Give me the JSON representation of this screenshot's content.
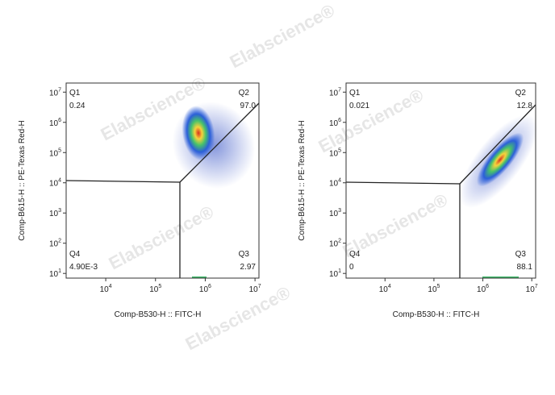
{
  "watermark": "Elabscience®",
  "chart_data": [
    {
      "type": "scatter",
      "x_label": "Comp-B530-H :: FITC-H",
      "y_label": "Comp-B615-H :: PE-Texas Red-H",
      "x_scale": "log",
      "y_scale": "log",
      "xlim": [
        1600,
        12000000
      ],
      "ylim": [
        7,
        20000000
      ],
      "xticks": [
        {
          "value": 10000,
          "label": "10",
          "exponent": "4"
        },
        {
          "value": 100000,
          "label": "10",
          "exponent": "5"
        },
        {
          "value": 1000000,
          "label": "10",
          "exponent": "6"
        },
        {
          "value": 10000000,
          "label": "10",
          "exponent": "7"
        }
      ],
      "yticks": [
        {
          "value": 10,
          "label": "10",
          "exponent": "1"
        },
        {
          "value": 100,
          "label": "10",
          "exponent": "2"
        },
        {
          "value": 1000,
          "label": "10",
          "exponent": "3"
        },
        {
          "value": 10000,
          "label": "10",
          "exponent": "4"
        },
        {
          "value": 100000,
          "label": "10",
          "exponent": "5"
        },
        {
          "value": 1000000,
          "label": "10",
          "exponent": "6"
        },
        {
          "value": 10000000,
          "label": "10",
          "exponent": "7"
        }
      ],
      "quadrants": [
        "Q1",
        "Q2",
        "Q3",
        "Q4"
      ],
      "values": [
        0.24,
        97.0,
        2.97,
        0.0049
      ],
      "value_labels": [
        "0.24",
        "97.0",
        "2.97",
        "4.90E-3"
      ]
    },
    {
      "type": "scatter",
      "x_label": "Comp-B530-H :: FITC-H",
      "y_label": "Comp-B615-H :: PE-Texas Red-H",
      "x_scale": "log",
      "y_scale": "log",
      "xlim": [
        1600,
        12000000
      ],
      "ylim": [
        7,
        20000000
      ],
      "xticks": [
        {
          "value": 10000,
          "label": "10",
          "exponent": "4"
        },
        {
          "value": 100000,
          "label": "10",
          "exponent": "5"
        },
        {
          "value": 1000000,
          "label": "10",
          "exponent": "6"
        },
        {
          "value": 10000000,
          "label": "10",
          "exponent": "7"
        }
      ],
      "yticks": [
        {
          "value": 10,
          "label": "10",
          "exponent": "1"
        },
        {
          "value": 100,
          "label": "10",
          "exponent": "2"
        },
        {
          "value": 1000,
          "label": "10",
          "exponent": "3"
        },
        {
          "value": 10000,
          "label": "10",
          "exponent": "4"
        },
        {
          "value": 100000,
          "label": "10",
          "exponent": "5"
        },
        {
          "value": 1000000,
          "label": "10",
          "exponent": "6"
        },
        {
          "value": 10000000,
          "label": "10",
          "exponent": "7"
        }
      ],
      "quadrants": [
        "Q1",
        "Q2",
        "Q3",
        "Q4"
      ],
      "values": [
        0.021,
        12.8,
        88.1,
        0
      ],
      "value_labels": [
        "0.021",
        "12.8",
        "88.1",
        "0"
      ]
    }
  ]
}
